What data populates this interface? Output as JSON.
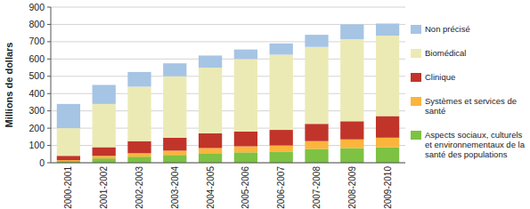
{
  "chart_data": {
    "type": "bar",
    "stacked": true,
    "grid": true,
    "legend": "right",
    "y_label": "Millions de dollars",
    "categories": [
      "2000-2001",
      "2001-2002",
      "2002-2003",
      "2003-2004",
      "2004-2005",
      "2005-2006",
      "2006-2007",
      "2007-2008",
      "2008-2009",
      "2009-2010"
    ],
    "ylim": [
      0,
      900
    ],
    "yticks": [
      0,
      100,
      200,
      300,
      400,
      500,
      600,
      700,
      800,
      900
    ],
    "series": [
      {
        "name": "Aspects sociaux, culturels et environnementaux de la santé des populations",
        "color": "#7dc243",
        "values": [
          10,
          25,
          35,
          45,
          55,
          60,
          65,
          80,
          85,
          90
        ]
      },
      {
        "name": "Systèmes et services de santé",
        "color": "#fbb53c",
        "values": [
          5,
          15,
          20,
          25,
          30,
          35,
          35,
          45,
          50,
          55
        ]
      },
      {
        "name": "Clinique",
        "color": "#c1342a",
        "values": [
          25,
          50,
          70,
          75,
          85,
          85,
          90,
          100,
          105,
          125
        ]
      },
      {
        "name": "Biomédical",
        "color": "#eceab4",
        "values": [
          160,
          250,
          315,
          355,
          380,
          420,
          435,
          445,
          475,
          465
        ]
      },
      {
        "name": "Non précisé",
        "color": "#a6c4e4",
        "values": [
          140,
          110,
          85,
          75,
          70,
          55,
          65,
          70,
          85,
          70
        ]
      }
    ]
  }
}
